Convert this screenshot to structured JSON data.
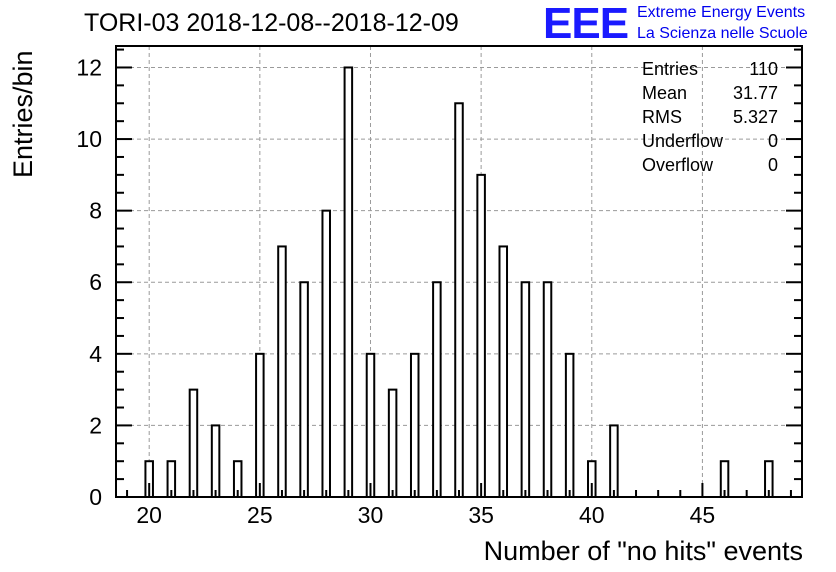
{
  "title": "TORI-03 2018-12-08--2018-12-09",
  "logo": {
    "mark": "EEE",
    "line1": "Extreme Energy Events",
    "line2": "La Scienza nelle Scuole",
    "color": "#0000ee"
  },
  "stats": [
    {
      "label": "Entries",
      "value": "110"
    },
    {
      "label": "Mean",
      "value": "31.77"
    },
    {
      "label": "RMS",
      "value": "5.327"
    },
    {
      "label": "Underflow",
      "value": "0"
    },
    {
      "label": "Overflow",
      "value": "0"
    }
  ],
  "chart_data": {
    "type": "bar",
    "xlabel": "Number of \"no hits\" events",
    "ylabel": "Entries/bin",
    "xlim": [
      18.5,
      49.5
    ],
    "ylim": [
      0,
      12.6
    ],
    "grid": true,
    "x_ticks": [
      20,
      25,
      30,
      35,
      40,
      45
    ],
    "y_ticks": [
      0,
      2,
      4,
      6,
      8,
      10,
      12
    ],
    "bins": [
      {
        "x": 20,
        "value": 1
      },
      {
        "x": 21,
        "value": 1
      },
      {
        "x": 22,
        "value": 3
      },
      {
        "x": 23,
        "value": 2
      },
      {
        "x": 24,
        "value": 1
      },
      {
        "x": 25,
        "value": 4
      },
      {
        "x": 26,
        "value": 7
      },
      {
        "x": 27,
        "value": 6
      },
      {
        "x": 28,
        "value": 8
      },
      {
        "x": 29,
        "value": 12
      },
      {
        "x": 30,
        "value": 4
      },
      {
        "x": 31,
        "value": 3
      },
      {
        "x": 32,
        "value": 4
      },
      {
        "x": 33,
        "value": 6
      },
      {
        "x": 34,
        "value": 11
      },
      {
        "x": 35,
        "value": 9
      },
      {
        "x": 36,
        "value": 7
      },
      {
        "x": 37,
        "value": 6
      },
      {
        "x": 38,
        "value": 6
      },
      {
        "x": 39,
        "value": 4
      },
      {
        "x": 40,
        "value": 1
      },
      {
        "x": 41,
        "value": 2
      },
      {
        "x": 46,
        "value": 1
      },
      {
        "x": 48,
        "value": 1
      }
    ]
  }
}
